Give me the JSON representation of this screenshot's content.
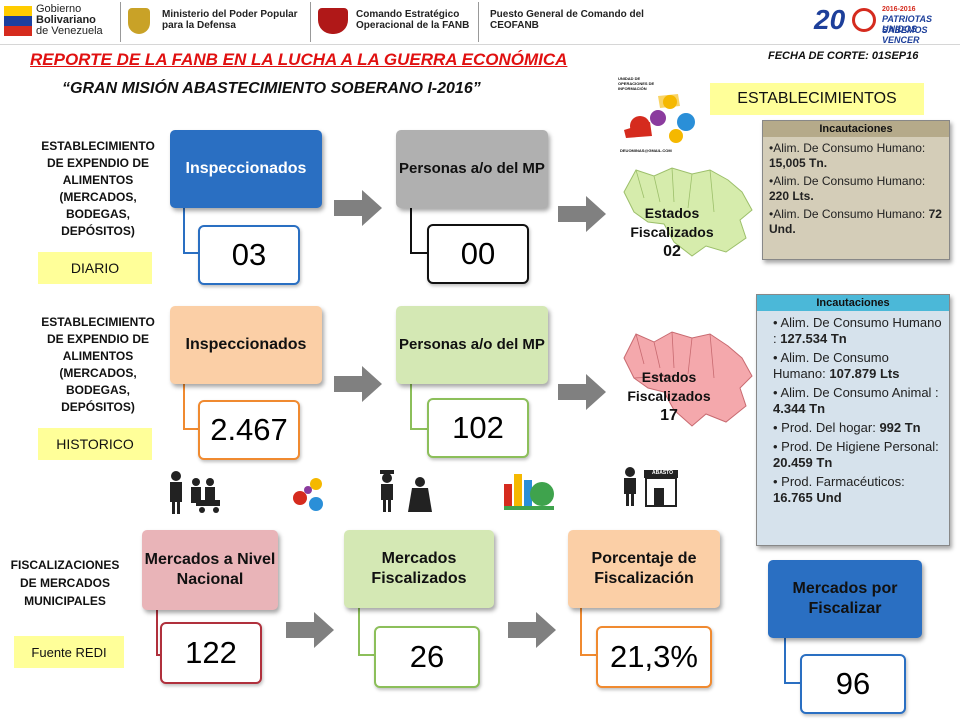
{
  "header": {
    "gov_line1": "Gobierno",
    "gov_line2": "Bolivariano",
    "gov_line3": "de Venezuela",
    "ministry_line1": "Ministerio del Poder Popular",
    "ministry_line2": "para la Defensa",
    "command_line1": "Comando Estratégico",
    "command_line2": "Operacional de la FANB",
    "post_line1": "Puesto General de Comando del",
    "post_line2": "CEOFANB",
    "logo_year": "20",
    "logo_years_small": "2016-2016",
    "logo_slogan1": "PATRIOTAS UNIDOS",
    "logo_slogan2": "SABEMOS VENCER"
  },
  "title": "REPORTE DE LA FANB EN LA LUCHA  A LA GUERRA ECONÓMICA",
  "subtitle": "“GRAN MISIÓN ABASTECIMIENTO SOBERANO I-2016”",
  "fecha": "FECHA DE CORTE: 01SEP16",
  "establecimientos": "ESTABLECIMIENTOS",
  "logo_unit": {
    "top": "UNIDAD DE OPERACIONES DE INFORMACIÓN",
    "bottom": "DEUOMINAS@GMAIL.COM"
  },
  "row1": {
    "side_label": [
      "ESTABLECIMIENTO",
      "DE EXPENDIO DE",
      "ALIMENTOS",
      "(MERCADOS,",
      "BODEGAS,",
      "DEPÓSITOS)"
    ],
    "tag": "DIARIO",
    "box1_label": "Inspeccionados",
    "box1_value": "03",
    "box2_label": "Personas a/o del MP",
    "box2_value": "00",
    "map_label1": "Estados",
    "map_label2": "Fiscalizados",
    "map_value": "02"
  },
  "row2": {
    "side_label": [
      "ESTABLECIMIENTO",
      "DE EXPENDIO DE",
      "ALIMENTOS",
      "(MERCADOS,",
      "BODEGAS,",
      "DEPÓSITOS)"
    ],
    "tag": "HISTORICO",
    "box1_label": "Inspeccionados",
    "box1_value": "2.467",
    "box2_label": "Personas a/o del MP",
    "box2_value": "102",
    "map_label1": "Estados",
    "map_label2": "Fiscalizados",
    "map_value": "17"
  },
  "incaut1": {
    "header": "Incautaciones",
    "items": [
      {
        "label": "•Alim. De Consumo Humano: ",
        "value": "15,005 Tn."
      },
      {
        "label": "•Alim. De Consumo Humano: ",
        "value": "220 Lts."
      },
      {
        "label": "•Alim. De Consumo Humano: ",
        "value": "72 Und."
      }
    ]
  },
  "incaut2": {
    "header": "Incautaciones",
    "items": [
      {
        "label": "• Alim. De Consumo Humano : ",
        "value": "127.534 Tn"
      },
      {
        "label": "• Alim. De Consumo Humano: ",
        "value": "107.879 Lts"
      },
      {
        "label": "• Alim. De Consumo Animal : ",
        "value": "4.344 Tn"
      },
      {
        "label": "• Prod. Del hogar: ",
        "value": "992 Tn"
      },
      {
        "label": "• Prod. De Higiene Personal: ",
        "value": "20.459 Tn"
      },
      {
        "label": "• Prod. Farmacéuticos: ",
        "value": "16.765 Und"
      }
    ]
  },
  "row3": {
    "side_label": [
      "FISCALIZACIONES",
      "DE MERCADOS",
      "MUNICIPALES"
    ],
    "tag": "Fuente REDI",
    "box1_label": "Mercados a Nivel Nacional",
    "box1_value": "122",
    "box2_label": "Mercados Fiscalizados",
    "box2_value": "26",
    "box3_label": "Porcentaje de Fiscalización",
    "box3_value": "21,3%",
    "box4_label": "Mercados por Fiscalizar",
    "box4_value": "96"
  },
  "store_sign": "ABASTO",
  "colors": {
    "title_red": "#e01010",
    "blue_box": "#2a6fc2",
    "grey_box": "#b0b0b0",
    "orange_box": "#fbcfa6",
    "green_box": "#d4e8b4",
    "pink_box": "#e9b4b8",
    "yellow_tag": "#ffff99"
  }
}
